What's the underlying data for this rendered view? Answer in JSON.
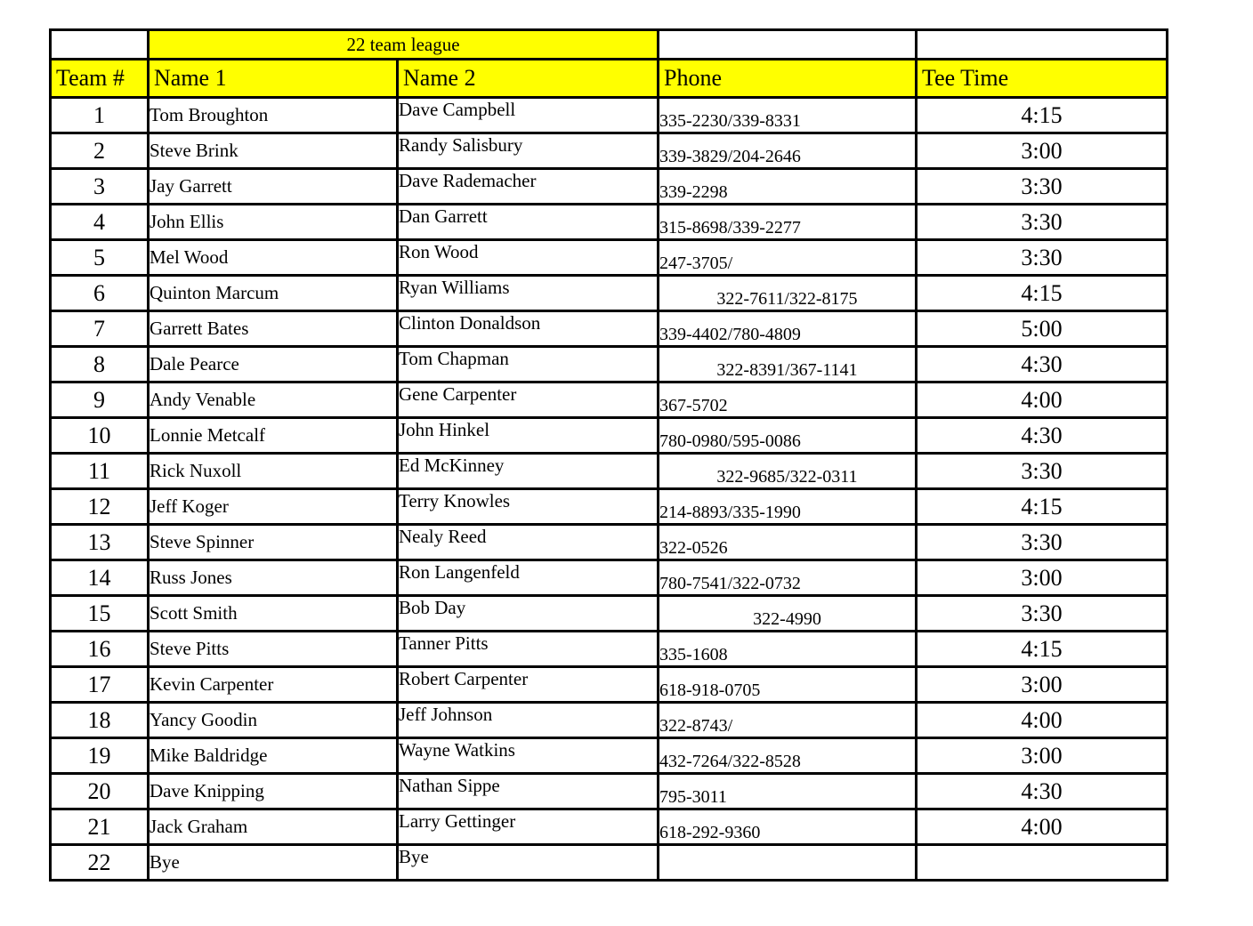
{
  "title": "22 team league",
  "columns": [
    "Team #",
    "Name 1",
    "Name 2",
    "Phone",
    "Tee Time"
  ],
  "colors": {
    "header_bg": "#FFFF00",
    "border": "#000000",
    "page_bg": "#FFFFFF"
  },
  "rows": [
    {
      "team": "1",
      "name1": "Tom Broughton",
      "name2": "Dave Campbell",
      "phone": "335-2230/339-8331",
      "phone_align": "left",
      "tee_time": "4:15"
    },
    {
      "team": "2",
      "name1": "Steve Brink",
      "name2": "Randy Salisbury",
      "phone": "339-3829/204-2646",
      "phone_align": "left",
      "tee_time": "3:00"
    },
    {
      "team": "3",
      "name1": "Jay Garrett",
      "name2": "Dave Rademacher",
      "phone": "339-2298",
      "phone_align": "left",
      "tee_time": "3:30"
    },
    {
      "team": "4",
      "name1": "John Ellis",
      "name2": "Dan Garrett",
      "phone": "315-8698/339-2277",
      "phone_align": "left",
      "tee_time": "3:30"
    },
    {
      "team": "5",
      "name1": "Mel Wood",
      "name2": "Ron Wood",
      "phone": "247-3705/",
      "phone_align": "left",
      "tee_time": "3:30"
    },
    {
      "team": "6",
      "name1": "Quinton Marcum",
      "name2": "Ryan Williams",
      "phone": "322-7611/322-8175",
      "phone_align": "center",
      "tee_time": "4:15"
    },
    {
      "team": "7",
      "name1": "Garrett Bates",
      "name2": "Clinton Donaldson",
      "phone": "339-4402/780-4809",
      "phone_align": "left",
      "tee_time": "5:00"
    },
    {
      "team": "8",
      "name1": "Dale Pearce",
      "name2": "Tom Chapman",
      "phone": "322-8391/367-1141",
      "phone_align": "center",
      "tee_time": "4:30"
    },
    {
      "team": "9",
      "name1": "Andy Venable",
      "name2": "Gene Carpenter",
      "phone": "367-5702",
      "phone_align": "left",
      "tee_time": "4:00"
    },
    {
      "team": "10",
      "name1": "Lonnie Metcalf",
      "name2": "John Hinkel",
      "phone": "780-0980/595-0086",
      "phone_align": "left",
      "tee_time": "4:30"
    },
    {
      "team": "11",
      "name1": "Rick Nuxoll",
      "name2": "Ed McKinney",
      "phone": "322-9685/322-0311",
      "phone_align": "center",
      "tee_time": "3:30"
    },
    {
      "team": "12",
      "name1": "Jeff Koger",
      "name2": "Terry Knowles",
      "phone": "214-8893/335-1990",
      "phone_align": "left",
      "tee_time": "4:15"
    },
    {
      "team": "13",
      "name1": "Steve Spinner",
      "name2": "Nealy Reed",
      "phone": "322-0526",
      "phone_align": "left",
      "tee_time": "3:30"
    },
    {
      "team": "14",
      "name1": "Russ Jones",
      "name2": "Ron Langenfeld",
      "phone": "780-7541/322-0732",
      "phone_align": "left",
      "tee_time": "3:00"
    },
    {
      "team": "15",
      "name1": "Scott Smith",
      "name2": "Bob Day",
      "phone": "322-4990",
      "phone_align": "center",
      "tee_time": "3:30"
    },
    {
      "team": "16",
      "name1": "Steve Pitts",
      "name2": "Tanner Pitts",
      "phone": "335-1608",
      "phone_align": "left",
      "tee_time": "4:15"
    },
    {
      "team": "17",
      "name1": "Kevin Carpenter",
      "name2": "Robert Carpenter",
      "phone": "618-918-0705",
      "phone_align": "left",
      "tee_time": "3:00"
    },
    {
      "team": "18",
      "name1": "Yancy Goodin",
      "name2": "Jeff Johnson",
      "phone": "322-8743/",
      "phone_align": "left",
      "tee_time": "4:00"
    },
    {
      "team": "19",
      "name1": "Mike Baldridge",
      "name2": "Wayne Watkins",
      "phone": "432-7264/322-8528",
      "phone_align": "left",
      "tee_time": "3:00"
    },
    {
      "team": "20",
      "name1": "Dave Knipping",
      "name2": "Nathan Sippe",
      "phone": "795-3011",
      "phone_align": "left",
      "tee_time": "4:30"
    },
    {
      "team": "21",
      "name1": "Jack Graham",
      "name2": "Larry Gettinger",
      "phone": "618-292-9360",
      "phone_align": "left",
      "tee_time": "4:00"
    },
    {
      "team": "22",
      "name1": "Bye",
      "name2": "Bye",
      "phone": "",
      "phone_align": "left",
      "tee_time": ""
    }
  ]
}
